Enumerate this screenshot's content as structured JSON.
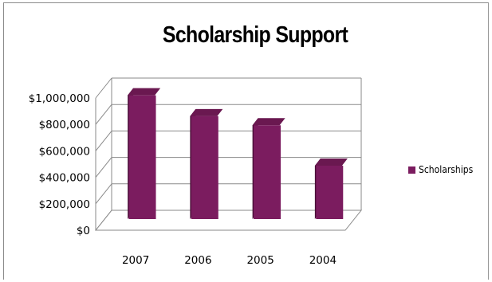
{
  "chart_data": {
    "type": "bar",
    "title": "Scholarship Support",
    "categories": [
      "2007",
      "2006",
      "2005",
      "2004"
    ],
    "series": [
      {
        "name": "Scholarships",
        "values": [
          950000,
          790000,
          720000,
          410000
        ]
      }
    ],
    "ylim": [
      0,
      1000000
    ],
    "yticks": [
      "$0",
      "$200,000",
      "$400,000",
      "$600,000",
      "$800,000",
      "$1,000,000"
    ],
    "grid": true,
    "legend_position": "right",
    "bar_color": "#7b1c5f"
  }
}
